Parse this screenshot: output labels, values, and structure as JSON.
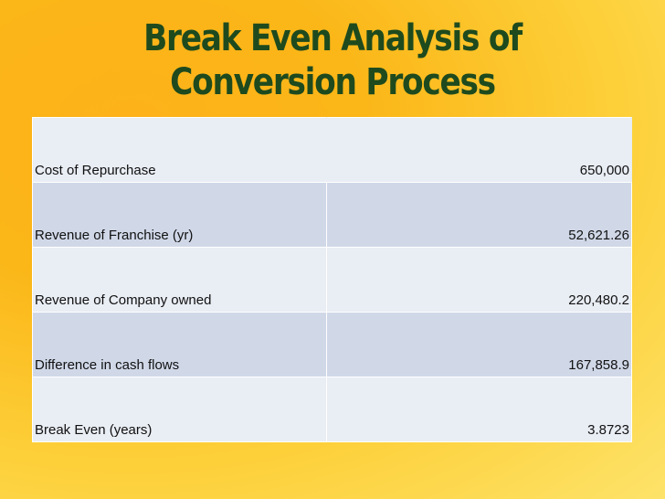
{
  "header": {
    "title": "Break Even Analysis of Conversion Process"
  },
  "table": {
    "rows": [
      [
        "Cost of Repurchase",
        "650,000"
      ],
      [
        "Revenue of Franchise (yr)",
        "52,621.26"
      ],
      [
        "Revenue of Company owned",
        "220,480.2"
      ],
      [
        "Difference in cash flows",
        "167,858.9"
      ],
      [
        "Break Even (years)",
        "3.8723"
      ]
    ]
  }
}
